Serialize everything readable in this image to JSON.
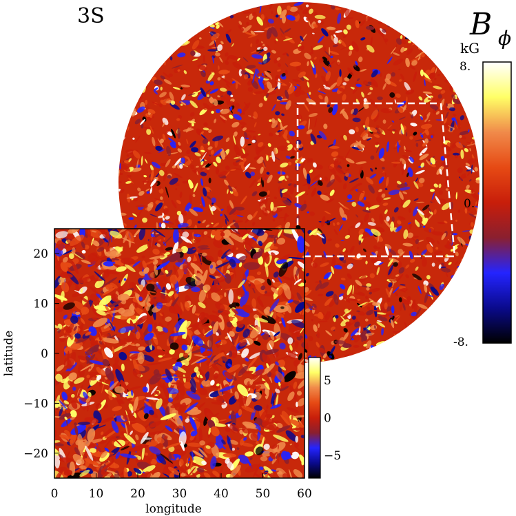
{
  "chart_data": [
    {
      "type": "heatmap",
      "title": "3S",
      "projection": "orthographic globe",
      "quantity_symbol": "B",
      "quantity_subscript": "ϕ",
      "unit": "kG",
      "colorbar": {
        "min": -8,
        "max": 8,
        "tick_labels": [
          "8.",
          "0.",
          "-8."
        ],
        "tick_values": [
          8,
          0,
          -8
        ]
      },
      "highlight_box": {
        "style": "dashed",
        "color": "#ffffff"
      }
    },
    {
      "type": "heatmap",
      "region": "inset zoom",
      "xlabel": "longitude",
      "ylabel": "latitude",
      "xlim": [
        0,
        60
      ],
      "ylim": [
        -25,
        25
      ],
      "x_ticks": [
        0,
        10,
        20,
        30,
        40,
        50,
        60
      ],
      "y_ticks": [
        -20,
        -10,
        0,
        10,
        20
      ],
      "colorbar": {
        "min": -8,
        "max": 8,
        "ticks": [
          5,
          0,
          -5
        ]
      }
    }
  ],
  "colors": {
    "colormap": [
      "#000000",
      "#0a0a8c",
      "#2424ff",
      "#8a1f2f",
      "#c81e0a",
      "#e64a14",
      "#f08a4a",
      "#ffff66",
      "#ffffff"
    ],
    "background": "#ffffff",
    "frame": "#000000"
  }
}
